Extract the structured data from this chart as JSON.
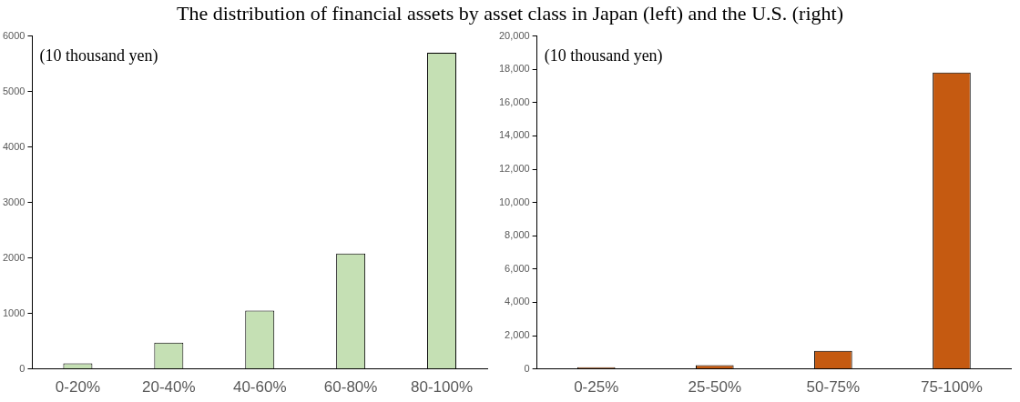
{
  "chart_data": [
    {
      "type": "bar",
      "title": "The distribution of financial assets by asset class in Japan (left) and the U.S. (right)",
      "annotations": [
        "(10 thousand yen)"
      ],
      "categories": [
        "0-20%",
        "20-40%",
        "40-60%",
        "60-80%",
        "80-100%"
      ],
      "values": [
        100,
        475,
        1050,
        2080,
        5700
      ],
      "color": "#c5e0b4",
      "ylim": [
        0,
        6000
      ],
      "yticks": [
        0,
        1000,
        2000,
        3000,
        4000,
        5000,
        6000
      ],
      "grid": false,
      "legend": false
    },
    {
      "type": "bar",
      "annotations": [
        "(10 thousand yen)"
      ],
      "categories": [
        "0-25%",
        "25-50%",
        "50-75%",
        "75-100%"
      ],
      "values": [
        100,
        230,
        1080,
        17800
      ],
      "color": "#c55a11",
      "ylim": [
        0,
        20000
      ],
      "yticks": [
        0,
        {
          "value": 2000,
          "label": "2,000"
        },
        {
          "value": 4000,
          "label": "4,000"
        },
        {
          "value": 6000,
          "label": "6,000"
        },
        {
          "value": 8000,
          "label": "8,000"
        },
        {
          "value": 10000,
          "label": "10,000"
        },
        {
          "value": 12000,
          "label": "12,000"
        },
        {
          "value": 14000,
          "label": "14,000"
        },
        {
          "value": 16000,
          "label": "16,000"
        },
        {
          "value": 18000,
          "label": "18,000"
        },
        {
          "value": 20000,
          "label": "20,000"
        }
      ],
      "grid": false,
      "legend": false
    }
  ]
}
